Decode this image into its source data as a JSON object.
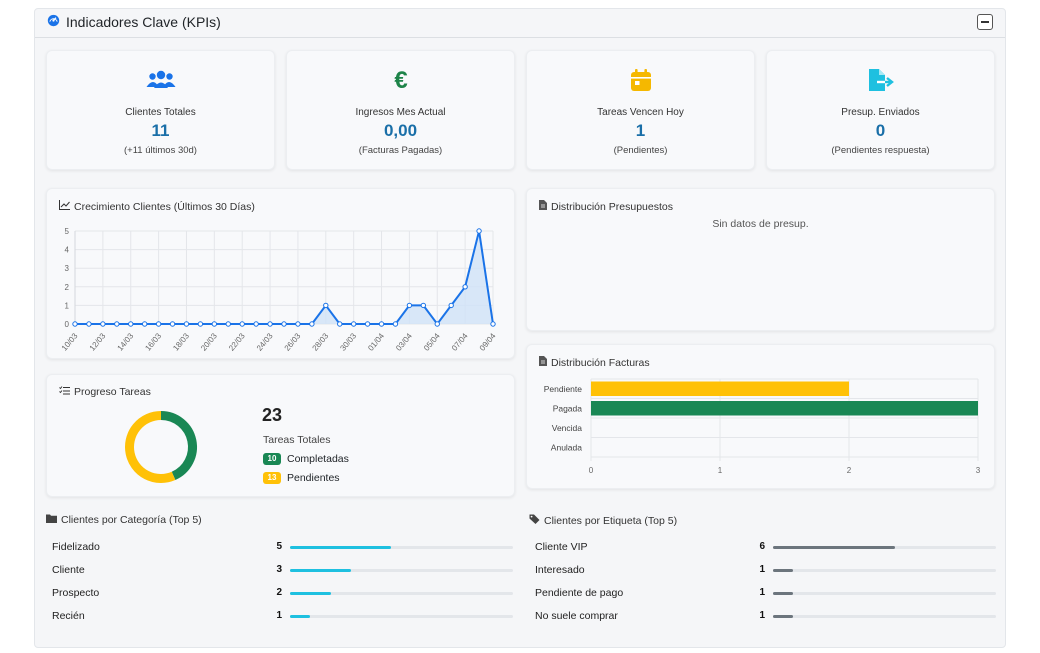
{
  "panel": {
    "title": "Indicadores Clave (KPIs)"
  },
  "kpis": [
    {
      "icon": "users-icon",
      "label": "Clientes Totales",
      "value": "11",
      "sub": "(+11 últimos 30d)",
      "color": "#1a73e8"
    },
    {
      "icon": "euro-icon",
      "label": "Ingresos Mes Actual",
      "value": "0,00",
      "sub": "(Facturas Pagadas)",
      "color": "#1e8449"
    },
    {
      "icon": "calendar-icon",
      "label": "Tareas Vencen Hoy",
      "value": "1",
      "sub": "(Pendientes)",
      "color": "#f5b800"
    },
    {
      "icon": "file-export-icon",
      "label": "Presup. Enviados",
      "value": "0",
      "sub": "(Pendientes respuesta)",
      "color": "#1ec0e0"
    }
  ],
  "growth": {
    "title": "Crecimiento Clientes (Últimos 30 Días)",
    "chart_data": {
      "type": "area",
      "x": [
        "10/03",
        "11/03",
        "12/03",
        "13/03",
        "14/03",
        "15/03",
        "16/03",
        "17/03",
        "18/03",
        "19/03",
        "20/03",
        "21/03",
        "22/03",
        "23/03",
        "24/03",
        "25/03",
        "26/03",
        "27/03",
        "28/03",
        "29/03",
        "30/03",
        "31/03",
        "01/04",
        "02/04",
        "03/04",
        "04/04",
        "05/04",
        "06/04",
        "07/04",
        "08/04",
        "09/04"
      ],
      "tick_labels": [
        "10/03",
        "12/03",
        "14/03",
        "16/03",
        "18/03",
        "20/03",
        "22/03",
        "24/03",
        "26/03",
        "28/03",
        "30/03",
        "01/04",
        "03/04",
        "05/04",
        "07/04",
        "09/04"
      ],
      "values": [
        0,
        0,
        0,
        0,
        0,
        0,
        0,
        0,
        0,
        0,
        0,
        0,
        0,
        0,
        0,
        0,
        0,
        0,
        1,
        0,
        0,
        0,
        0,
        0,
        1,
        1,
        0,
        1,
        2,
        5,
        0
      ],
      "ylim": [
        0,
        5
      ],
      "yticks": [
        0,
        1,
        2,
        3,
        4,
        5
      ],
      "color": "#1a73e8",
      "fill": "#cfe2f8"
    }
  },
  "budgets": {
    "title": "Distribución Presupuestos",
    "empty": "Sin datos de presup."
  },
  "invoices": {
    "title": "Distribución Facturas",
    "chart_data": {
      "type": "bar",
      "orientation": "horizontal",
      "categories": [
        "Pendiente",
        "Pagada",
        "Vencida",
        "Anulada"
      ],
      "values": [
        2,
        3,
        0,
        0
      ],
      "colors": [
        "#ffc107",
        "#198754",
        "#dc3545",
        "#6c757d"
      ],
      "xlim": [
        0,
        3
      ],
      "xticks": [
        "0",
        "1",
        "2",
        "3"
      ]
    }
  },
  "tasks": {
    "title": "Progreso Tareas",
    "total": "23",
    "total_label": "Tareas Totales",
    "legend": [
      {
        "count": "10",
        "label": "Completadas",
        "color": "#198754"
      },
      {
        "count": "13",
        "label": "Pendientes",
        "color": "#ffc107"
      }
    ],
    "chart_data": {
      "type": "pie",
      "categories": [
        "Completadas",
        "Pendientes"
      ],
      "values": [
        10,
        13
      ]
    }
  },
  "categories": {
    "title": "Clientes por Categoría (Top 5)",
    "color": "#1ec0e0",
    "max": 11,
    "items": [
      {
        "name": "Fidelizado",
        "count": "5",
        "value": 5
      },
      {
        "name": "Cliente",
        "count": "3",
        "value": 3
      },
      {
        "name": "Prospecto",
        "count": "2",
        "value": 2
      },
      {
        "name": "Recién",
        "count": "1",
        "value": 1
      }
    ]
  },
  "tags": {
    "title": "Clientes por Etiqueta (Top 5)",
    "color": "#6c757d",
    "max": 11,
    "items": [
      {
        "name": "Cliente VIP",
        "count": "6",
        "value": 6
      },
      {
        "name": "Interesado",
        "count": "1",
        "value": 1
      },
      {
        "name": "Pendiente de pago",
        "count": "1",
        "value": 1
      },
      {
        "name": "No suele comprar",
        "count": "1",
        "value": 1
      }
    ]
  }
}
